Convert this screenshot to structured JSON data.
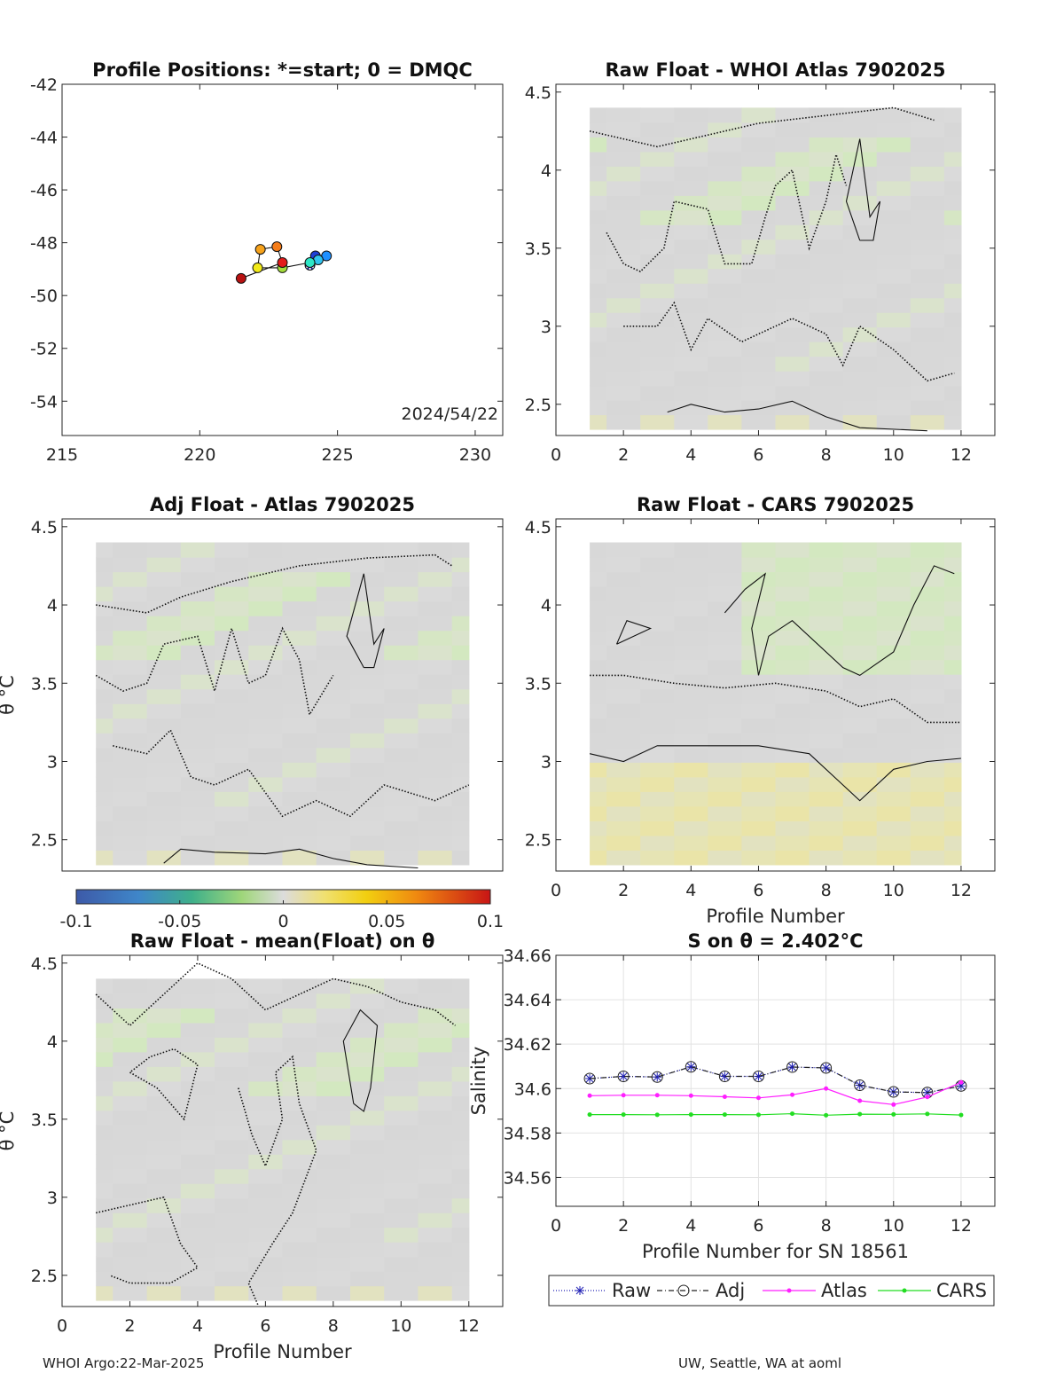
{
  "footer": {
    "left": "WHOI Argo:22-Mar-2025",
    "right": "UW, Seattle, WA at aoml"
  },
  "chart_data": [
    {
      "id": "positions",
      "type": "scatter",
      "title": "Profile Positions: *=start; 0 = DMQC",
      "xlim": [
        215,
        231
      ],
      "ylim": [
        -55.3,
        -42
      ],
      "xticks": [
        "215",
        "220",
        "225",
        "230"
      ],
      "yticks": [
        "-42",
        "-44",
        "-46",
        "-48",
        "-50",
        "-52",
        "-54"
      ],
      "annotation": "2024/54/22",
      "points": [
        {
          "lon": 224.0,
          "lat": -48.85,
          "color": "#1a1aa8",
          "marker": "star"
        },
        {
          "lon": 224.2,
          "lat": -48.5,
          "color": "#1f3fd6"
        },
        {
          "lon": 224.6,
          "lat": -48.5,
          "color": "#1e90ff"
        },
        {
          "lon": 224.3,
          "lat": -48.65,
          "color": "#31c4ef"
        },
        {
          "lon": 224.0,
          "lat": -48.75,
          "color": "#2ee6c7"
        },
        {
          "lon": 223.0,
          "lat": -48.95,
          "color": "#a4dc3a"
        },
        {
          "lon": 222.1,
          "lat": -48.95,
          "color": "#f2ea18"
        },
        {
          "lon": 222.2,
          "lat": -48.25,
          "color": "#f6a21b"
        },
        {
          "lon": 222.8,
          "lat": -48.15,
          "color": "#f57c18"
        },
        {
          "lon": 223.0,
          "lat": -48.75,
          "color": "#e31b1b"
        },
        {
          "lon": 221.5,
          "lat": -49.35,
          "color": "#b81212"
        }
      ]
    },
    {
      "id": "raw_whoi",
      "type": "heatmap",
      "title": "Raw Float - WHOI Atlas  7902025",
      "xlim": [
        0,
        13
      ],
      "ylim": [
        2.3,
        4.55
      ],
      "xticks": [
        "0",
        "2",
        "4",
        "6",
        "8",
        "10",
        "12"
      ],
      "yticks": [
        "2.5",
        "3",
        "3.5",
        "4",
        "4.5"
      ]
    },
    {
      "id": "adj_atlas",
      "type": "heatmap",
      "title": "Adj Float - Atlas  7902025",
      "ylabel": "θ °C",
      "xlim": [
        0,
        13
      ],
      "ylim": [
        2.3,
        4.55
      ],
      "xticks": [],
      "yticks": [
        "2.5",
        "3",
        "3.5",
        "4",
        "4.5"
      ]
    },
    {
      "id": "raw_cars",
      "type": "heatmap",
      "title": "Raw Float - CARS  7902025",
      "xlabel": "Profile Number",
      "xlim": [
        0,
        13
      ],
      "ylim": [
        2.3,
        4.55
      ],
      "xticks": [
        "0",
        "2",
        "4",
        "6",
        "8",
        "10",
        "12"
      ],
      "yticks": [
        "2.5",
        "3",
        "3.5",
        "4",
        "4.5"
      ]
    },
    {
      "id": "colorbar",
      "type": "heatmap",
      "range": [
        -0.1,
        0.1
      ],
      "ticks": [
        "-0.1",
        "-0.05",
        "0",
        "0.05",
        "0.1"
      ]
    },
    {
      "id": "raw_mean",
      "type": "heatmap",
      "title": "Raw Float - mean(Float) on θ",
      "xlabel": "Profile Number",
      "ylabel": "θ °C",
      "xlim": [
        0,
        13
      ],
      "ylim": [
        2.3,
        4.55
      ],
      "xticks": [
        "0",
        "2",
        "4",
        "6",
        "8",
        "10",
        "12"
      ],
      "yticks": [
        "2.5",
        "3",
        "3.5",
        "4",
        "4.5"
      ]
    },
    {
      "id": "salinity",
      "type": "line",
      "title": "S on θ = 2.402°C",
      "xlabel": "Profile Number for SN 18561",
      "ylabel": "Salinity",
      "xlim": [
        0,
        13
      ],
      "ylim": [
        34.547,
        34.66
      ],
      "xticks": [
        "0",
        "2",
        "4",
        "6",
        "8",
        "10",
        "12"
      ],
      "yticks": [
        "34.56",
        "34.58",
        "34.6",
        "34.62",
        "34.64",
        "34.66"
      ],
      "grid": true,
      "legend": "bottom",
      "x": [
        1,
        2,
        3,
        4,
        5,
        6,
        7,
        8,
        9,
        10,
        11,
        12
      ],
      "series": [
        {
          "name": "Raw",
          "color": "#1f1fb4",
          "values": [
            34.6045,
            34.6055,
            34.6052,
            34.6098,
            34.6055,
            34.6055,
            34.6097,
            34.6093,
            34.6015,
            34.5985,
            34.5982,
            34.6012
          ]
        },
        {
          "name": "Adj",
          "color": "#222222",
          "values": [
            34.6045,
            34.6055,
            34.6052,
            34.6098,
            34.6055,
            34.6055,
            34.6097,
            34.6093,
            34.6015,
            34.5985,
            34.5982,
            34.6012
          ]
        },
        {
          "name": "Atlas",
          "color": "#ff1fff",
          "values": [
            34.5968,
            34.597,
            34.597,
            34.5968,
            34.5963,
            34.5958,
            34.5972,
            34.6,
            34.5945,
            34.5928,
            34.5962,
            34.6028
          ]
        },
        {
          "name": "CARS",
          "color": "#22dd22",
          "values": [
            34.5883,
            34.5883,
            34.5882,
            34.5883,
            34.5883,
            34.5882,
            34.5887,
            34.588,
            34.5885,
            34.5884,
            34.5886,
            34.5881
          ]
        }
      ]
    }
  ]
}
